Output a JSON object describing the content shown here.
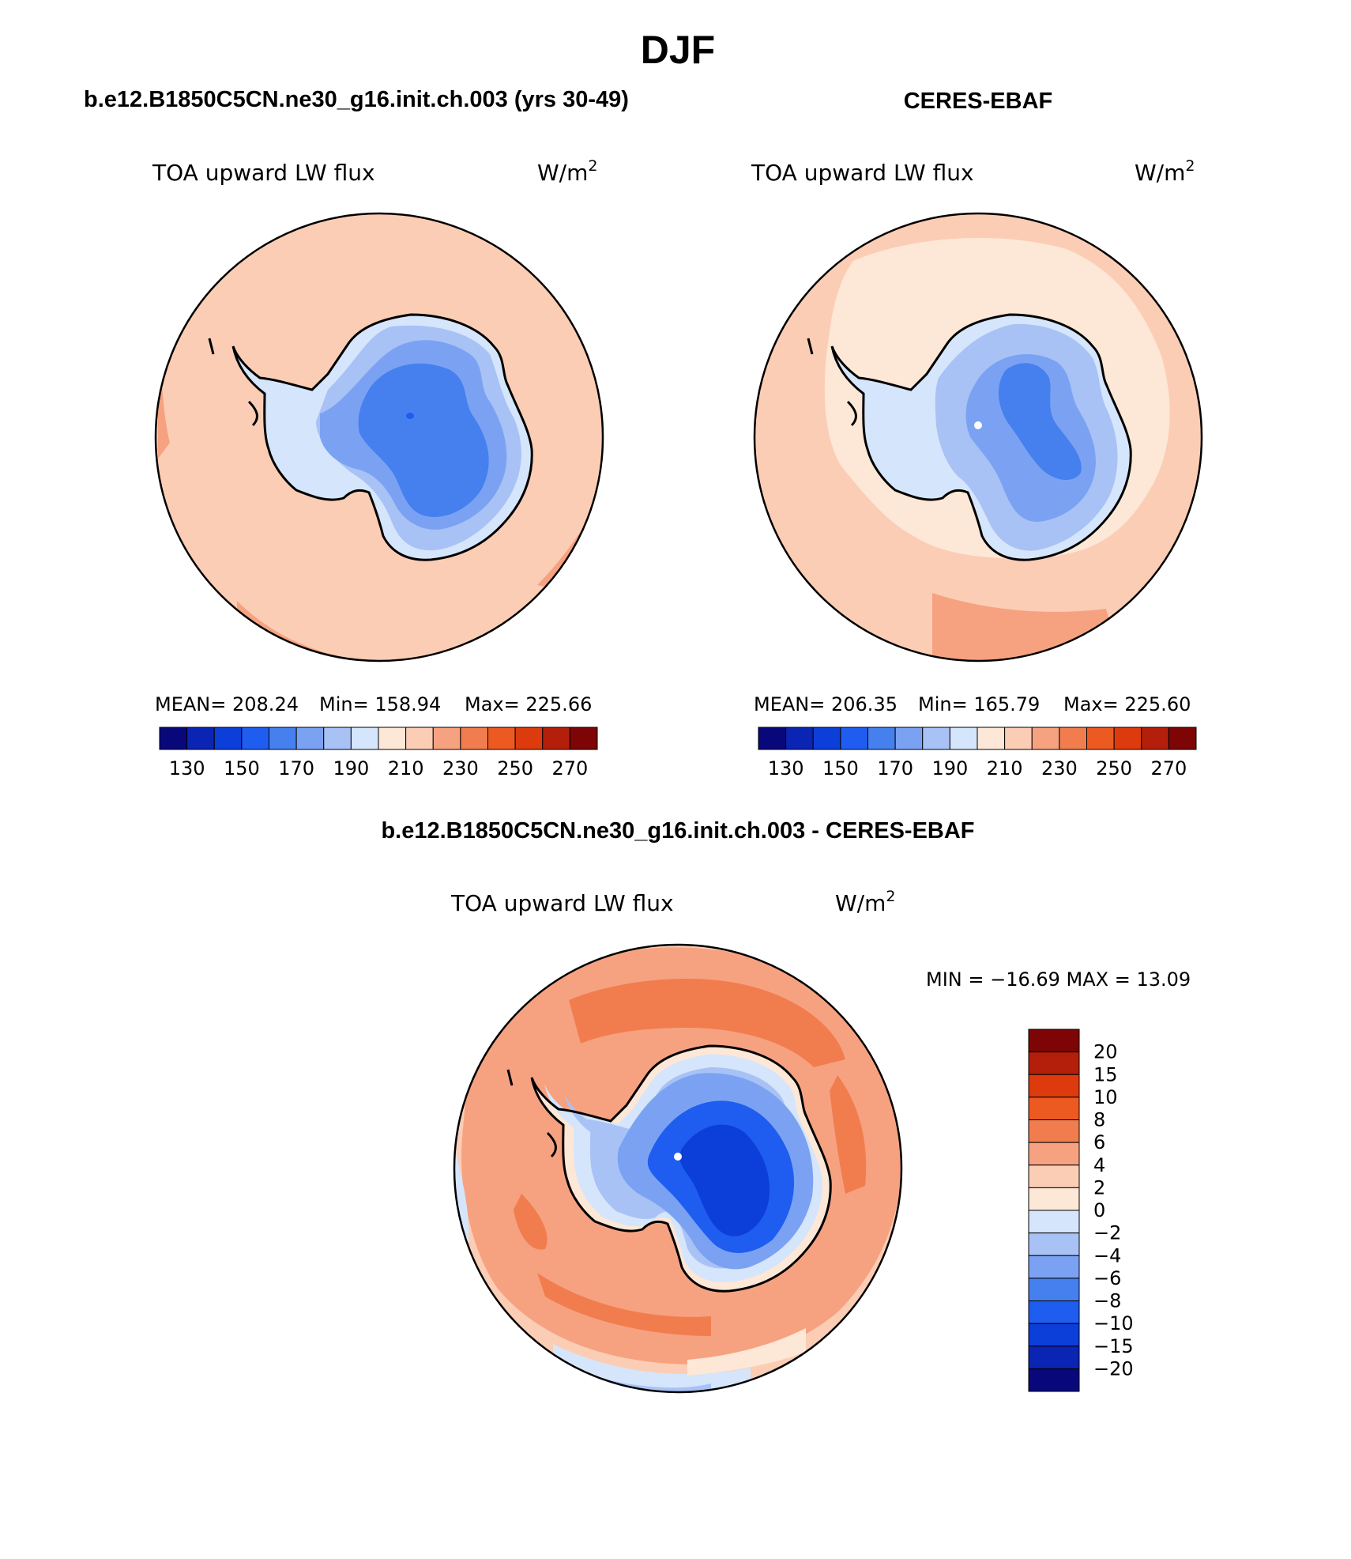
{
  "season": "DJF",
  "panels": {
    "model": {
      "title": "b.e12.B1850C5CN.ne30_g16.init.ch.003 (yrs 30-49)",
      "variable": "TOA upward LW flux",
      "units_base": "W/m",
      "units_exp": "2",
      "stats": {
        "mean_label": "MEAN=",
        "mean": "208.24",
        "min_label": "Min=",
        "min": "158.94",
        "max_label": "Max=",
        "max": "225.66"
      }
    },
    "obs": {
      "title": "CERES-EBAF",
      "variable": "TOA upward LW flux",
      "units_base": "W/m",
      "units_exp": "2",
      "stats": {
        "mean_label": "MEAN=",
        "mean": "206.35",
        "min_label": "Min=",
        "min": "165.79",
        "max_label": "Max=",
        "max": "225.60"
      }
    },
    "diff": {
      "title": "b.e12.B1850C5CN.ne30_g16.init.ch.003 - CERES-EBAF",
      "variable": "TOA upward LW flux",
      "units_base": "W/m",
      "units_exp": "2",
      "minmax": "MIN = −16.69 MAX =  13.09"
    }
  },
  "colorbar_abs": {
    "colors": [
      "#08087a",
      "#0a24b4",
      "#0c3ed9",
      "#1f5cf0",
      "#4680ee",
      "#7ba2f2",
      "#a8c2f6",
      "#d5e5fb",
      "#fde7d6",
      "#fbcdb5",
      "#f6a281",
      "#f17d4f",
      "#ec5a22",
      "#dd3b0d",
      "#b31f0a",
      "#7d0505"
    ],
    "ticks": [
      "130",
      "150",
      "170",
      "190",
      "210",
      "230",
      "250",
      "270"
    ]
  },
  "colorbar_diff": {
    "colors": [
      "#7d0505",
      "#b31f0a",
      "#dd3b0d",
      "#ec5a22",
      "#f17d4f",
      "#f6a281",
      "#fbcdb5",
      "#fde7d6",
      "#d5e5fb",
      "#a8c2f6",
      "#7ba2f2",
      "#4680ee",
      "#1f5cf0",
      "#0c3ed9",
      "#0a24b4",
      "#08087a"
    ],
    "labels": [
      "20",
      "15",
      "10",
      "8",
      "6",
      "4",
      "2",
      "0",
      "−2",
      "−4",
      "−6",
      "−8",
      "−10",
      "−15",
      "−20"
    ]
  },
  "colors": {
    "ocean_model": "#fbcdb5",
    "ocean_obs_outer": "#fbcdb5",
    "ocean_obs_ring": "#fde7d6",
    "diff_outer": "#f6a281",
    "diff_ring": "#f17d4f"
  }
}
